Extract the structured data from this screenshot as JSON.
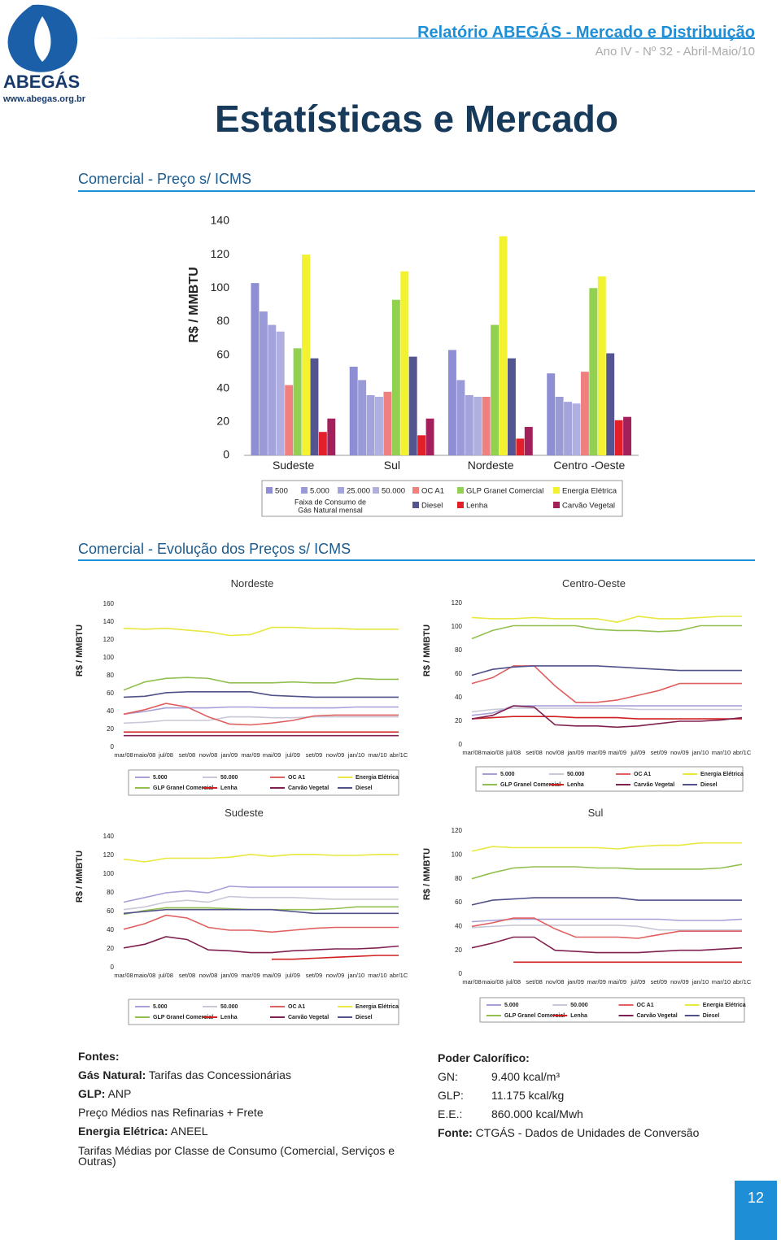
{
  "header": {
    "title": "Relatório ABEGÁS - Mercado e Distribuição",
    "subtitle": "Ano IV - Nº 32 - Abril-Maio/10"
  },
  "logo": {
    "name": "ABEGÁS",
    "url": "www.abegas.org.br"
  },
  "page_title": "Estatísticas e Mercado",
  "sections": [
    {
      "heading": "Comercial - Preço s/ ICMS"
    },
    {
      "heading": "Comercial - Evolução dos Preços s/ ICMS"
    }
  ],
  "chart_data": [
    {
      "type": "bar",
      "y_label": "R$ / MMBTU",
      "categories": [
        "Sudeste",
        "Sul",
        "Nordeste",
        "Centro -Oeste"
      ],
      "ylim": [
        0,
        140
      ],
      "yticks": [
        0,
        20,
        40,
        60,
        80,
        100,
        120,
        140
      ],
      "grid": false,
      "legend_note": [
        "Faixa de Consumo de",
        "Gás Natural mensal"
      ],
      "series": [
        {
          "name": "500",
          "color": "#8e8ed4",
          "values": [
            103,
            53,
            63,
            49
          ]
        },
        {
          "name": "5.000",
          "color": "#9a9ad8",
          "values": [
            86,
            45,
            45,
            35
          ]
        },
        {
          "name": "25.000",
          "color": "#a4a4dc",
          "values": [
            78,
            36,
            36,
            32
          ]
        },
        {
          "name": "50.000",
          "color": "#afafe0",
          "values": [
            74,
            35,
            35,
            31
          ]
        },
        {
          "name": "OC A1",
          "color": "#f08080",
          "values": [
            42,
            38,
            35,
            50
          ]
        },
        {
          "name": "GLP Granel Comercial",
          "color": "#92d050",
          "values": [
            64,
            93,
            78,
            100
          ]
        },
        {
          "name": "Energia Elétrica",
          "color": "#f2f230",
          "values": [
            120,
            110,
            131,
            107
          ]
        },
        {
          "name": "Diesel",
          "color": "#545490",
          "values": [
            58,
            59,
            58,
            61
          ]
        },
        {
          "name": "Lenha",
          "color": "#e3202a",
          "values": [
            14,
            12,
            10,
            21
          ]
        },
        {
          "name": "Carvão Vegetal",
          "color": "#a3205a",
          "values": [
            22,
            22,
            17,
            23
          ]
        }
      ]
    },
    {
      "type": "line",
      "title": "Nordeste",
      "y_label": "R$ / MMBTU",
      "ylim": [
        0,
        160
      ],
      "yticks": [
        0,
        20,
        40,
        60,
        80,
        100,
        120,
        140,
        160
      ],
      "grid": false,
      "categories": [
        "mar/08",
        "maio/08",
        "jul/08",
        "set/08",
        "nov/08",
        "jan/09",
        "mar/09",
        "mai/09",
        "jul/09",
        "set/09",
        "nov/09",
        "jan/10",
        "mar/10",
        "abr/1C"
      ],
      "series": [
        {
          "name": "5.000",
          "color": "#a89fd8",
          "values": [
            37,
            40,
            44,
            44,
            44,
            45,
            45,
            44,
            44,
            44,
            44,
            45,
            45,
            45
          ]
        },
        {
          "name": "50.000",
          "color": "#c8c8d8",
          "values": [
            27,
            28,
            30,
            30,
            30,
            34,
            34,
            33,
            33,
            34,
            34,
            34,
            34,
            34
          ]
        },
        {
          "name": "OC A1",
          "color": "#e06060",
          "values": [
            37,
            42,
            49,
            45,
            34,
            26,
            25,
            27,
            30,
            35,
            36,
            36,
            36,
            36
          ]
        },
        {
          "name": "Energia Elétrica",
          "color": "#e8e840",
          "values": [
            133,
            132,
            133,
            131,
            129,
            125,
            126,
            134,
            134,
            133,
            133,
            132,
            132,
            132
          ]
        },
        {
          "name": "GLP Granel Comercial",
          "color": "#92c050",
          "values": [
            64,
            73,
            77,
            78,
            77,
            72,
            72,
            72,
            73,
            72,
            72,
            77,
            76,
            76
          ]
        },
        {
          "name": "Lenha",
          "color": "#d02020",
          "values": [
            17,
            17,
            17,
            17,
            17,
            17,
            17,
            17,
            17,
            17,
            17,
            17,
            17,
            17
          ]
        },
        {
          "name": "Carvão Vegetal",
          "color": "#802050",
          "values": [
            13,
            13,
            13,
            13,
            13,
            13,
            13,
            13,
            13,
            13,
            13,
            13,
            13,
            13
          ]
        },
        {
          "name": "Diesel",
          "color": "#50508a",
          "values": [
            56,
            57,
            61,
            62,
            62,
            62,
            62,
            58,
            57,
            56,
            56,
            56,
            56,
            56
          ]
        }
      ]
    },
    {
      "type": "line",
      "title": "Centro-Oeste",
      "y_label": "R$ / MMBTU",
      "ylim": [
        0,
        120
      ],
      "yticks": [
        0,
        20,
        40,
        60,
        80,
        100,
        120
      ],
      "grid": false,
      "categories": [
        "mar/08",
        "maio/08",
        "jul/08",
        "set/08",
        "nov/08",
        "jan/09",
        "mar/09",
        "mai/09",
        "jul/09",
        "set/09",
        "nov/09",
        "jan/10",
        "mar/10",
        "abr/1C"
      ],
      "series": [
        {
          "name": "5.000",
          "color": "#a89fd8",
          "values": [
            25,
            27,
            33,
            33,
            33,
            33,
            33,
            33,
            33,
            33,
            33,
            33,
            33,
            33
          ]
        },
        {
          "name": "50.000",
          "color": "#c8c8d8",
          "values": [
            28,
            30,
            31,
            31,
            31,
            31,
            31,
            31,
            30,
            30,
            30,
            30,
            30,
            30
          ]
        },
        {
          "name": "OC A1",
          "color": "#e06060",
          "values": [
            52,
            57,
            67,
            67,
            50,
            36,
            36,
            38,
            42,
            46,
            52,
            52,
            52,
            52
          ]
        },
        {
          "name": "Energia Elétrica",
          "color": "#e8e840",
          "values": [
            108,
            107,
            107,
            108,
            107,
            107,
            107,
            104,
            109,
            107,
            107,
            108,
            109,
            109
          ]
        },
        {
          "name": "GLP Granel Comercial",
          "color": "#92c050",
          "values": [
            90,
            97,
            101,
            101,
            101,
            101,
            98,
            97,
            97,
            96,
            97,
            101,
            101,
            101
          ]
        },
        {
          "name": "Lenha",
          "color": "#d02020",
          "values": [
            22,
            23,
            24,
            24,
            24,
            23,
            23,
            23,
            22,
            22,
            22,
            22,
            22,
            22
          ]
        },
        {
          "name": "Carvão Vegetal",
          "color": "#802050",
          "values": [
            22,
            25,
            33,
            32,
            17,
            16,
            16,
            15,
            16,
            18,
            20,
            20,
            21,
            23
          ]
        },
        {
          "name": "Diesel",
          "color": "#50508a",
          "values": [
            59,
            64,
            66,
            67,
            67,
            67,
            67,
            66,
            65,
            64,
            63,
            63,
            63,
            63
          ]
        }
      ]
    },
    {
      "type": "line",
      "title": "Sudeste",
      "y_label": "R$ / MMBTU",
      "ylim": [
        0,
        140
      ],
      "yticks": [
        0,
        20,
        40,
        60,
        80,
        100,
        120,
        140
      ],
      "grid": false,
      "categories": [
        "mar/08",
        "maio/08",
        "jul/08",
        "set/08",
        "nov/08",
        "jan/09",
        "mar/09",
        "mai/09",
        "jul/09",
        "set/09",
        "nov/09",
        "jan/10",
        "mar/10",
        "abr/1C"
      ],
      "series": [
        {
          "name": "5.000",
          "color": "#a89fd8",
          "values": [
            70,
            75,
            80,
            82,
            80,
            87,
            86,
            86,
            86,
            86,
            86,
            86,
            86,
            86
          ]
        },
        {
          "name": "50.000",
          "color": "#c8c8d8",
          "values": [
            62,
            65,
            70,
            72,
            70,
            76,
            75,
            75,
            75,
            74,
            73,
            73,
            73,
            73
          ]
        },
        {
          "name": "OC A1",
          "color": "#e06060",
          "values": [
            41,
            47,
            56,
            53,
            43,
            40,
            40,
            38,
            40,
            42,
            43,
            43,
            43,
            43
          ]
        },
        {
          "name": "Energia Elétrica",
          "color": "#e8e840",
          "values": [
            116,
            113,
            117,
            117,
            117,
            118,
            121,
            119,
            121,
            121,
            120,
            120,
            121,
            121
          ]
        },
        {
          "name": "GLP Granel Comercial",
          "color": "#92c050",
          "values": [
            57,
            61,
            64,
            64,
            64,
            63,
            62,
            62,
            62,
            62,
            63,
            65,
            65,
            65
          ]
        },
        {
          "name": "Lenha",
          "color": "#d02020",
          "values": [
            null,
            null,
            null,
            null,
            null,
            null,
            null,
            9,
            9,
            10,
            11,
            12,
            13,
            13
          ]
        },
        {
          "name": "Carvão Vegetal",
          "color": "#802050",
          "values": [
            21,
            25,
            33,
            30,
            19,
            18,
            16,
            16,
            18,
            19,
            20,
            20,
            21,
            23
          ]
        },
        {
          "name": "Diesel",
          "color": "#50508a",
          "values": [
            58,
            60,
            62,
            62,
            62,
            62,
            62,
            62,
            60,
            58,
            58,
            58,
            58,
            58
          ]
        }
      ]
    },
    {
      "type": "line",
      "title": "Sul",
      "y_label": "R$ / MMBTU",
      "ylim": [
        0,
        120
      ],
      "yticks": [
        0,
        20,
        40,
        60,
        80,
        100,
        120
      ],
      "grid": false,
      "categories": [
        "mar/08",
        "maio/08",
        "jul/08",
        "set/08",
        "nov/08",
        "jan/09",
        "mar/09",
        "mai/09",
        "jul/09",
        "set/09",
        "nov/09",
        "jan/10",
        "mar/10",
        "abr/1C"
      ],
      "series": [
        {
          "name": "5.000",
          "color": "#a89fd8",
          "values": [
            44,
            45,
            46,
            46,
            46,
            46,
            46,
            46,
            46,
            46,
            45,
            45,
            45,
            46
          ]
        },
        {
          "name": "50.000",
          "color": "#c8c8d8",
          "values": [
            39,
            40,
            41,
            41,
            41,
            41,
            41,
            41,
            40,
            37,
            37,
            37,
            37,
            37
          ]
        },
        {
          "name": "OC A1",
          "color": "#e06060",
          "values": [
            40,
            43,
            47,
            47,
            38,
            31,
            31,
            31,
            30,
            33,
            36,
            36,
            36,
            36
          ]
        },
        {
          "name": "Energia Elétrica",
          "color": "#e8e840",
          "values": [
            103,
            107,
            106,
            106,
            106,
            106,
            106,
            105,
            107,
            108,
            108,
            110,
            110,
            110
          ]
        },
        {
          "name": "GLP Granel Comercial",
          "color": "#92c050",
          "values": [
            80,
            85,
            89,
            90,
            90,
            90,
            89,
            89,
            88,
            88,
            88,
            88,
            89,
            92
          ]
        },
        {
          "name": "Lenha",
          "color": "#d02020",
          "values": [
            null,
            null,
            10,
            10,
            10,
            10,
            10,
            10,
            10,
            10,
            10,
            10,
            10,
            10
          ]
        },
        {
          "name": "Carvão Vegetal",
          "color": "#802050",
          "values": [
            22,
            26,
            31,
            31,
            20,
            19,
            18,
            18,
            18,
            19,
            20,
            20,
            21,
            22
          ]
        },
        {
          "name": "Diesel",
          "color": "#50508a",
          "values": [
            58,
            62,
            63,
            64,
            64,
            64,
            64,
            64,
            62,
            62,
            62,
            62,
            62,
            62
          ]
        }
      ]
    }
  ],
  "sources": {
    "heading": "Fontes:",
    "items": [
      {
        "label": "Gás Natural:",
        "text": "Tarifas das Concessionárias"
      },
      {
        "label": "GLP:",
        "text": "ANP"
      },
      {
        "text": "Preço Médios nas Refinarias + Frete"
      },
      {
        "label": "Energia Elétrica:",
        "text": "ANEEL"
      },
      {
        "text": "Tarifas Médias por Classe de Consumo (Comercial, Serviços e Outras)"
      }
    ]
  },
  "calorific": {
    "heading": "Poder Calorífico:",
    "rows": [
      [
        "GN:",
        "9.400 kcal/m³"
      ],
      [
        "GLP:",
        "11.175 kcal/kg"
      ],
      [
        "E.E.:",
        "860.000 kcal/Mwh"
      ]
    ],
    "source": {
      "label": "Fonte:",
      "text": "CTGÁS - Dados de Unidades de Conversão"
    }
  },
  "page_number": "12"
}
